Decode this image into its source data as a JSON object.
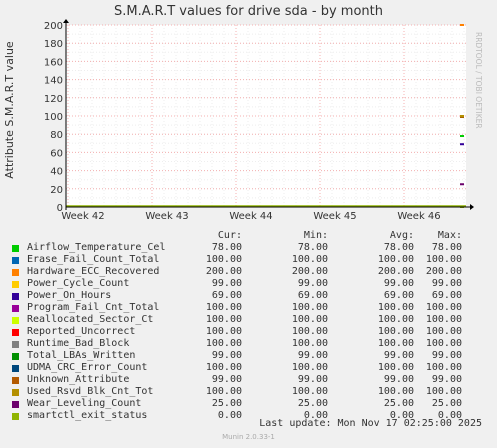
{
  "title": "S.M.A.R.T values for drive sda - by month",
  "side_text": "RRDTOOL / TOBI OETIKER",
  "footer": "Munin 2.0.33-1",
  "last_update": "Last update:  Mon Nov 17 02:25:00 2025",
  "legend_headers": [
    "Cur:",
    "Min:",
    "Avg:",
    "Max:"
  ],
  "chart_data": {
    "type": "line",
    "title": "S.M.A.R.T values for drive sda - by month",
    "ylabel": "Attribute S.M.A.R.T value",
    "xlabel": "",
    "ylim": [
      0,
      200
    ],
    "y_ticks": [
      0,
      20,
      40,
      60,
      80,
      100,
      120,
      140,
      160,
      180,
      200
    ],
    "x_ticks": [
      "Week 42",
      "Week 43",
      "Week 44",
      "Week 45",
      "Week 46"
    ],
    "grid": true,
    "series": [
      {
        "name": "Airflow_Temperature_Cel",
        "color": "#00cc00",
        "cur": "78.00",
        "min": "78.00",
        "avg": "78.00",
        "max": "78.00",
        "value": 78
      },
      {
        "name": "Erase_Fail_Count_Total",
        "color": "#0066b3",
        "cur": "100.00",
        "min": "100.00",
        "avg": "100.00",
        "max": "100.00",
        "value": 100
      },
      {
        "name": "Hardware_ECC_Recovered",
        "color": "#ff8000",
        "cur": "200.00",
        "min": "200.00",
        "avg": "200.00",
        "max": "200.00",
        "value": 200
      },
      {
        "name": "Power_Cycle_Count",
        "color": "#ffcc00",
        "cur": "99.00",
        "min": "99.00",
        "avg": "99.00",
        "max": "99.00",
        "value": 99
      },
      {
        "name": "Power_On_Hours",
        "color": "#330099",
        "cur": "69.00",
        "min": "69.00",
        "avg": "69.00",
        "max": "69.00",
        "value": 69
      },
      {
        "name": "Program_Fail_Cnt_Total",
        "color": "#990099",
        "cur": "100.00",
        "min": "100.00",
        "avg": "100.00",
        "max": "100.00",
        "value": 100
      },
      {
        "name": "Reallocated_Sector_Ct",
        "color": "#ccff00",
        "cur": "100.00",
        "min": "100.00",
        "avg": "100.00",
        "max": "100.00",
        "value": 100
      },
      {
        "name": "Reported_Uncorrect",
        "color": "#ff0000",
        "cur": "100.00",
        "min": "100.00",
        "avg": "100.00",
        "max": "100.00",
        "value": 100
      },
      {
        "name": "Runtime_Bad_Block",
        "color": "#808080",
        "cur": "100.00",
        "min": "100.00",
        "avg": "100.00",
        "max": "100.00",
        "value": 100
      },
      {
        "name": "Total_LBAs_Written",
        "color": "#008f00",
        "cur": "99.00",
        "min": "99.00",
        "avg": "99.00",
        "max": "99.00",
        "value": 99
      },
      {
        "name": "UDMA_CRC_Error_Count",
        "color": "#00487d",
        "cur": "100.00",
        "min": "100.00",
        "avg": "100.00",
        "max": "100.00",
        "value": 100
      },
      {
        "name": "Unknown_Attribute",
        "color": "#b35a00",
        "cur": "99.00",
        "min": "99.00",
        "avg": "99.00",
        "max": "99.00",
        "value": 99
      },
      {
        "name": "Used_Rsvd_Blk_Cnt_Tot",
        "color": "#b38f00",
        "cur": "100.00",
        "min": "100.00",
        "avg": "100.00",
        "max": "100.00",
        "value": 100
      },
      {
        "name": "Wear_Leveling_Count",
        "color": "#6b006b",
        "cur": "25.00",
        "min": "25.00",
        "avg": "25.00",
        "max": "25.00",
        "value": 25
      },
      {
        "name": "smartctl_exit_status",
        "color": "#8fb300",
        "cur": "0.00",
        "min": "0.00",
        "avg": "0.00",
        "max": "0.00",
        "value": 0
      }
    ]
  }
}
